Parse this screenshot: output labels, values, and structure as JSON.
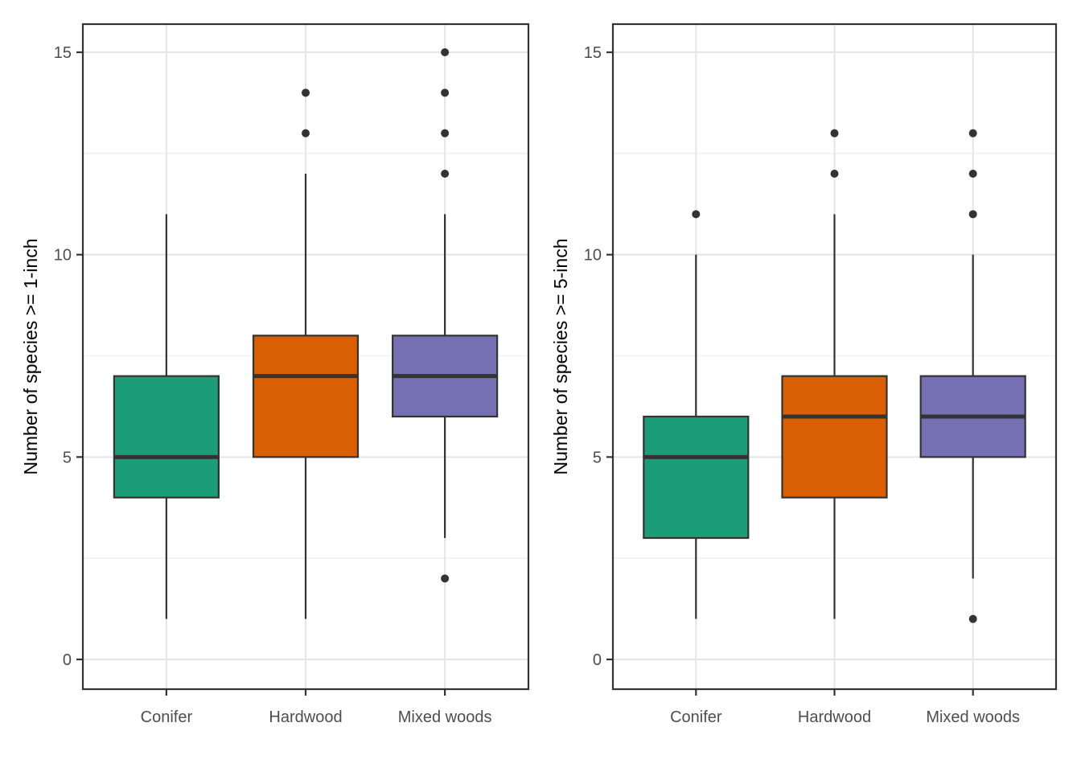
{
  "style": {
    "background": "#FFFFFF",
    "panel_background": "#FFFFFF",
    "panel_border": "#333333",
    "box_border": "#333333",
    "median_color": "#333333",
    "outlier_color": "#333333",
    "grid_major": "#E5E5E5",
    "grid_minor": "#F1F1F1",
    "tick_label_color": "#4D4D4D",
    "axis_title_color": "#000000",
    "series_colors": {
      "conifer": "#1B9E77",
      "hardwood": "#D95F02",
      "mixed_woods": "#7570B3"
    }
  },
  "chart_data": [
    {
      "type": "boxplot",
      "title": "",
      "xlabel": "",
      "ylabel": "Number of species >= 1-inch",
      "ylim": [
        -0.75,
        15.75
      ],
      "y_ticks": [
        0,
        5,
        10,
        15
      ],
      "y_tick_labels": [
        "0",
        "5",
        "10",
        "15"
      ],
      "grid": "on",
      "legend_position": "none",
      "categories": [
        "Conifer",
        "Hardwood",
        "Mixed woods"
      ],
      "series": [
        {
          "category": "Conifer",
          "slug": "conifer",
          "color": "#1B9E77",
          "whisker_low": 1,
          "q1": 4,
          "median": 5,
          "q3": 7,
          "whisker_high": 11,
          "outliers": []
        },
        {
          "category": "Hardwood",
          "slug": "hardwood",
          "color": "#D95F02",
          "whisker_low": 1,
          "q1": 5,
          "median": 7,
          "q3": 8,
          "whisker_high": 12,
          "outliers": [
            13,
            14
          ]
        },
        {
          "category": "Mixed woods",
          "slug": "mixed-woods",
          "color": "#7570B3",
          "whisker_low": 3,
          "q1": 6,
          "median": 7,
          "q3": 8,
          "whisker_high": 11,
          "outliers": [
            2,
            12,
            13,
            14,
            15
          ]
        }
      ]
    },
    {
      "type": "boxplot",
      "title": "",
      "xlabel": "",
      "ylabel": "Number of species >= 5-inch",
      "ylim": [
        -0.75,
        15.75
      ],
      "y_ticks": [
        0,
        5,
        10,
        15
      ],
      "y_tick_labels": [
        "0",
        "5",
        "10",
        "15"
      ],
      "grid": "on",
      "legend_position": "none",
      "categories": [
        "Conifer",
        "Hardwood",
        "Mixed woods"
      ],
      "series": [
        {
          "category": "Conifer",
          "slug": "conifer",
          "color": "#1B9E77",
          "whisker_low": 1,
          "q1": 3,
          "median": 5,
          "q3": 6,
          "whisker_high": 10,
          "outliers": [
            11
          ]
        },
        {
          "category": "Hardwood",
          "slug": "hardwood",
          "color": "#D95F02",
          "whisker_low": 1,
          "q1": 4,
          "median": 6,
          "q3": 7,
          "whisker_high": 11,
          "outliers": [
            12,
            13
          ]
        },
        {
          "category": "Mixed woods",
          "slug": "mixed-woods",
          "color": "#7570B3",
          "whisker_low": 2,
          "q1": 5,
          "median": 6,
          "q3": 7,
          "whisker_high": 10,
          "outliers": [
            1,
            11,
            12,
            13
          ]
        }
      ]
    }
  ]
}
